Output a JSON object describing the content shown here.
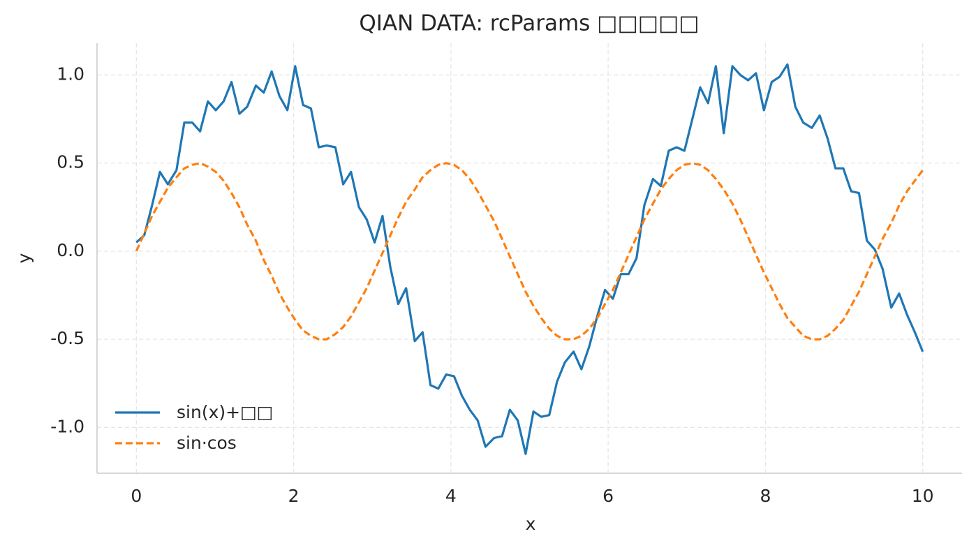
{
  "chart_data": {
    "type": "line",
    "title": "QIAN DATA: rcParams □□□□□",
    "x_label": "x",
    "y_label": "y",
    "x": [
      0,
      0.1,
      0.2,
      0.3,
      0.4,
      0.51,
      0.61,
      0.71,
      0.81,
      0.91,
      1.01,
      1.11,
      1.21,
      1.31,
      1.41,
      1.52,
      1.62,
      1.72,
      1.82,
      1.92,
      2.02,
      2.12,
      2.22,
      2.32,
      2.42,
      2.53,
      2.63,
      2.73,
      2.83,
      2.93,
      3.03,
      3.13,
      3.23,
      3.33,
      3.43,
      3.54,
      3.64,
      3.74,
      3.84,
      3.94,
      4.04,
      4.14,
      4.24,
      4.34,
      4.44,
      4.55,
      4.65,
      4.75,
      4.85,
      4.95,
      5.05,
      5.15,
      5.25,
      5.35,
      5.45,
      5.56,
      5.66,
      5.76,
      5.86,
      5.96,
      6.06,
      6.16,
      6.26,
      6.36,
      6.46,
      6.57,
      6.67,
      6.77,
      6.87,
      6.97,
      7.07,
      7.17,
      7.27,
      7.37,
      7.47,
      7.58,
      7.68,
      7.78,
      7.88,
      7.98,
      8.08,
      8.18,
      8.28,
      8.38,
      8.48,
      8.59,
      8.69,
      8.79,
      8.89,
      8.99,
      9.09,
      9.19,
      9.29,
      9.39,
      9.49,
      9.6,
      9.7,
      9.8,
      9.9,
      10
    ],
    "series": [
      {
        "name": "sin(x)+□□",
        "color": "#1f77b4",
        "dash": "solid",
        "values": [
          0.05,
          0.09,
          0.26,
          0.45,
          0.38,
          0.46,
          0.73,
          0.73,
          0.68,
          0.85,
          0.8,
          0.85,
          0.96,
          0.78,
          0.82,
          0.94,
          0.9,
          1.02,
          0.88,
          0.8,
          1.05,
          0.83,
          0.81,
          0.59,
          0.6,
          0.59,
          0.38,
          0.45,
          0.25,
          0.18,
          0.05,
          0.2,
          -0.09,
          -0.3,
          -0.21,
          -0.51,
          -0.46,
          -0.76,
          -0.78,
          -0.7,
          -0.71,
          -0.82,
          -0.9,
          -0.96,
          -1.11,
          -1.06,
          -1.05,
          -0.9,
          -0.96,
          -1.15,
          -0.91,
          -0.94,
          -0.93,
          -0.74,
          -0.63,
          -0.57,
          -0.67,
          -0.54,
          -0.37,
          -0.22,
          -0.27,
          -0.13,
          -0.13,
          -0.04,
          0.26,
          0.41,
          0.37,
          0.57,
          0.59,
          0.57,
          0.75,
          0.93,
          0.84,
          1.05,
          0.67,
          1.05,
          1.0,
          0.97,
          1.01,
          0.8,
          0.96,
          0.99,
          1.06,
          0.82,
          0.73,
          0.7,
          0.77,
          0.64,
          0.47,
          0.47,
          0.34,
          0.33,
          0.06,
          0.01,
          -0.1,
          -0.32,
          -0.24,
          -0.36,
          -0.46,
          -0.57
        ]
      },
      {
        "name": "sin·cos",
        "color": "#ff7f0e",
        "dash": "dashed",
        "values": [
          0,
          0.1,
          0.2,
          0.28,
          0.36,
          0.42,
          0.47,
          0.49,
          0.5,
          0.48,
          0.45,
          0.4,
          0.33,
          0.25,
          0.15,
          0.06,
          -0.05,
          -0.14,
          -0.24,
          -0.32,
          -0.39,
          -0.45,
          -0.48,
          -0.5,
          -0.5,
          -0.47,
          -0.43,
          -0.37,
          -0.29,
          -0.21,
          -0.11,
          -0.01,
          0.09,
          0.19,
          0.28,
          0.35,
          0.42,
          0.46,
          0.49,
          0.5,
          0.49,
          0.46,
          0.41,
          0.34,
          0.26,
          0.17,
          0.07,
          -0.03,
          -0.13,
          -0.23,
          -0.31,
          -0.38,
          -0.44,
          -0.48,
          -0.5,
          -0.5,
          -0.48,
          -0.44,
          -0.38,
          -0.3,
          -0.22,
          -0.12,
          -0.02,
          0.08,
          0.18,
          0.27,
          0.35,
          0.41,
          0.46,
          0.49,
          0.5,
          0.49,
          0.46,
          0.41,
          0.35,
          0.27,
          0.18,
          0.08,
          -0.02,
          -0.12,
          -0.21,
          -0.3,
          -0.38,
          -0.43,
          -0.48,
          -0.5,
          -0.5,
          -0.48,
          -0.44,
          -0.39,
          -0.31,
          -0.23,
          -0.13,
          -0.03,
          0.07,
          0.16,
          0.26,
          0.34,
          0.4,
          0.46
        ]
      }
    ],
    "xlim": [
      -0.5,
      10.5
    ],
    "xticks": [
      0,
      2,
      4,
      6,
      8,
      10
    ],
    "ylim": [
      -1.26,
      1.18
    ],
    "yticks": [
      {
        "value": -1,
        "label": "-1.0"
      },
      {
        "value": -0.5,
        "label": "-0.5"
      },
      {
        "value": 0,
        "label": "0.0"
      },
      0.5,
      {
        "value": 1,
        "label": "1.0"
      }
    ],
    "grid": true,
    "legend": "lower left"
  }
}
